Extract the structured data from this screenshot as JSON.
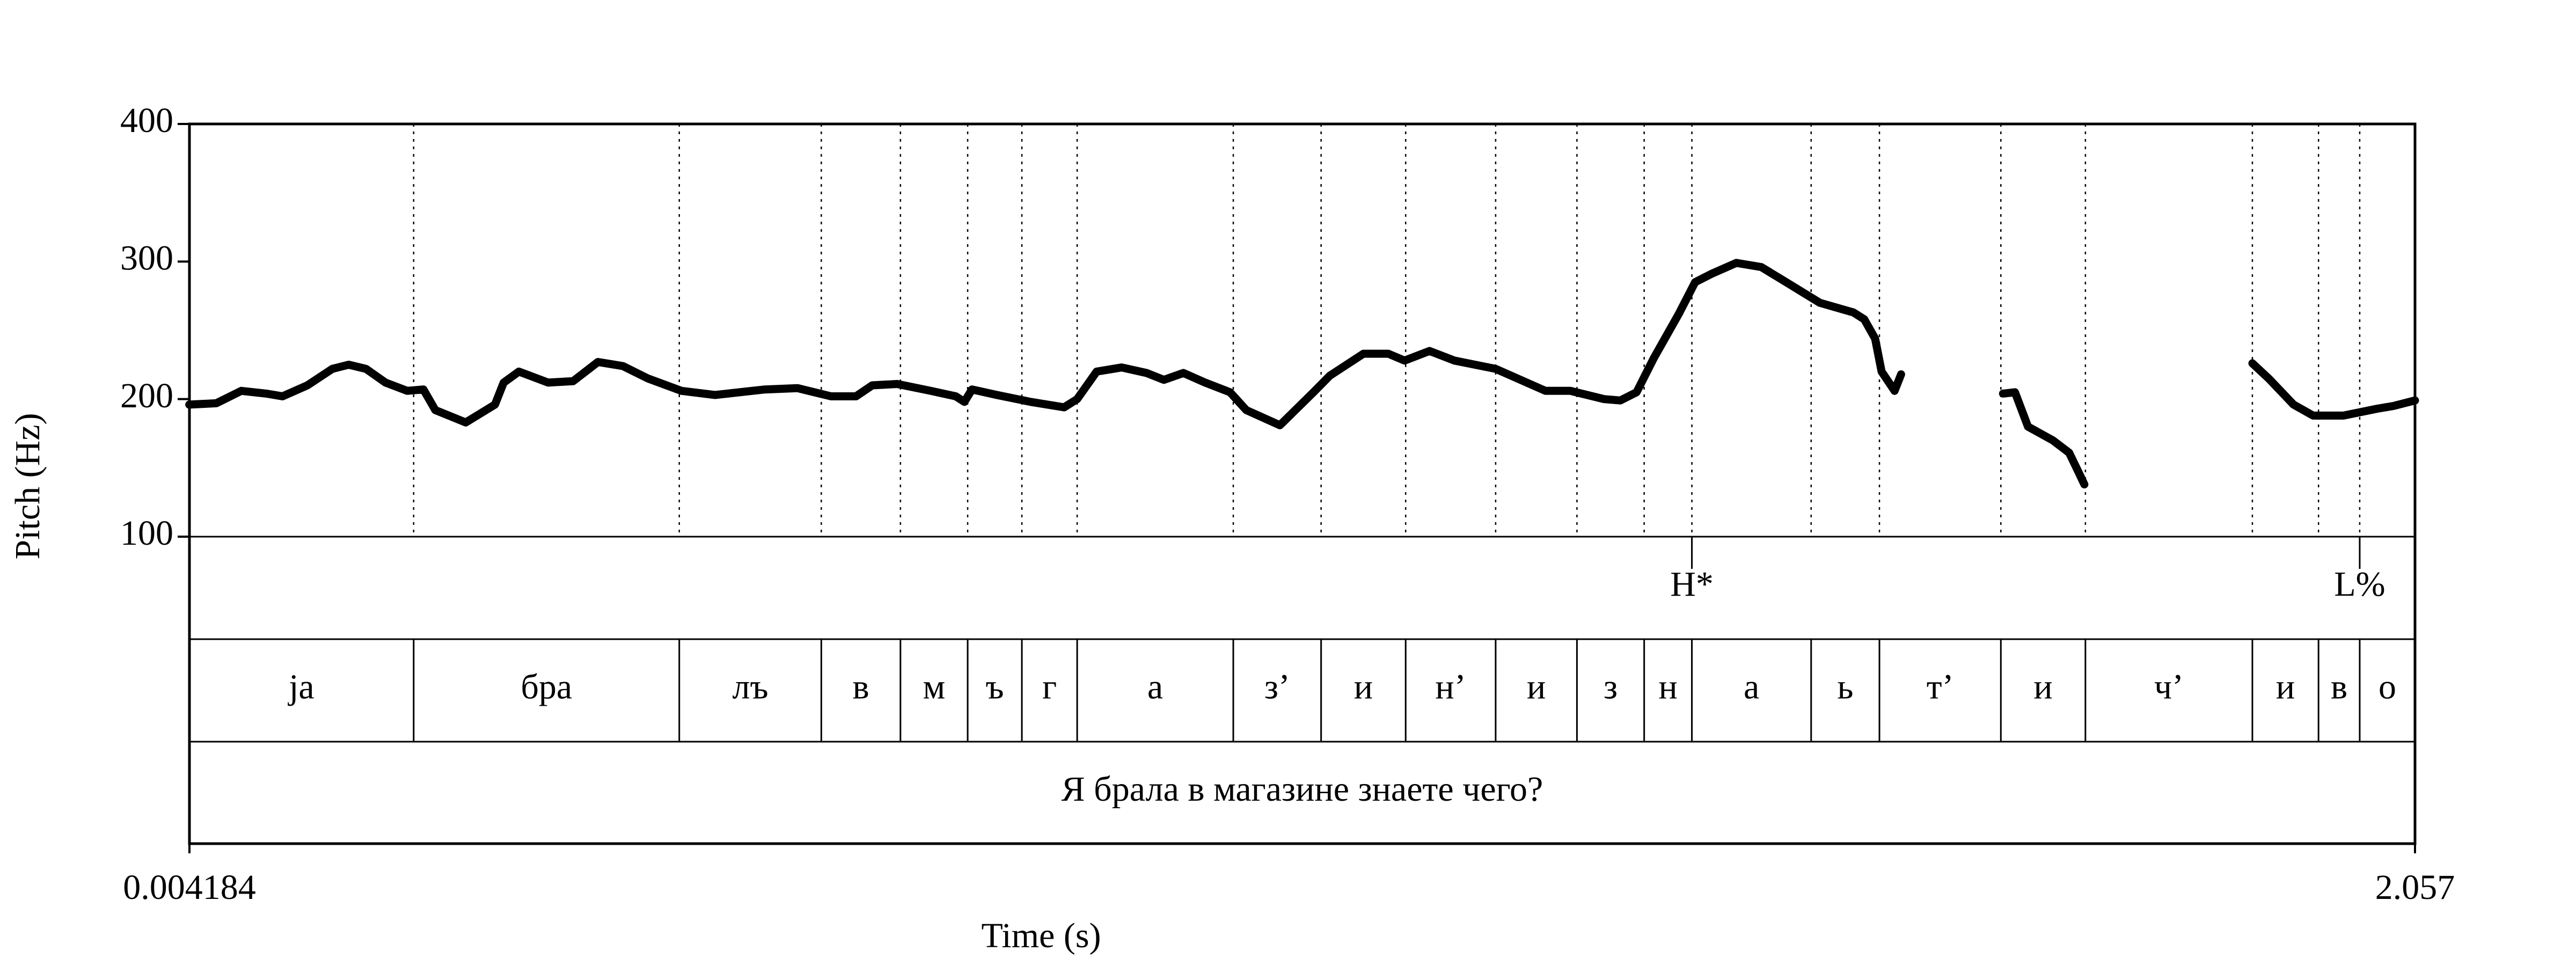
{
  "chart_data": {
    "type": "line",
    "xlabel": "Time (s)",
    "ylabel": "Pitch (Hz)",
    "xlim": [
      0.004184,
      2.057
    ],
    "xticks": [
      0.004184,
      2.057
    ],
    "ylim": [
      100,
      400
    ],
    "yticks": [
      100,
      200,
      300,
      400
    ],
    "x": [
      0.004,
      0.029,
      0.052,
      0.075,
      0.09,
      0.113,
      0.136,
      0.151,
      0.167,
      0.185,
      0.205,
      0.22,
      0.231,
      0.259,
      0.286,
      0.294,
      0.308,
      0.335,
      0.358,
      0.381,
      0.404,
      0.427,
      0.458,
      0.489,
      0.535,
      0.565,
      0.596,
      0.619,
      0.634,
      0.657,
      0.688,
      0.711,
      0.719,
      0.726,
      0.749,
      0.78,
      0.811,
      0.823,
      0.841,
      0.864,
      0.887,
      0.903,
      0.921,
      0.941,
      0.964,
      0.979,
      1.01,
      1.041,
      1.056,
      1.087,
      1.11,
      1.125,
      1.148,
      1.171,
      1.209,
      1.255,
      1.278,
      1.309,
      1.324,
      1.339,
      1.355,
      1.378,
      1.393,
      1.408,
      1.431,
      1.454,
      1.477,
      1.508,
      1.539,
      1.549,
      1.559,
      1.565,
      1.577,
      1.583,
      1.62,
      1.677,
      1.688,
      1.7,
      1.723,
      1.738,
      1.746,
      1.752,
      1.83,
      1.907,
      1.922,
      1.945,
      1.963,
      1.991,
      2.022,
      2.037,
      2.057
    ],
    "series": [
      {
        "color": "#000000",
        "values": [
          196,
          197,
          206,
          204,
          202,
          210,
          222,
          225,
          222,
          212,
          206,
          207,
          192,
          183,
          196,
          212,
          220,
          212,
          213,
          227,
          224,
          215,
          206,
          203,
          207,
          208,
          202,
          202,
          210,
          211,
          206,
          202,
          198,
          207,
          203,
          198,
          194,
          200,
          220,
          223,
          219,
          214,
          219,
          212,
          205,
          192,
          181,
          205,
          217,
          233,
          233,
          228,
          235,
          228,
          222,
          206,
          206,
          200,
          199,
          205,
          230,
          262,
          285,
          291,
          299,
          296,
          285,
          270,
          263,
          258,
          244,
          220,
          206,
          218,
          null,
          204,
          205,
          180,
          170,
          161,
          148,
          138,
          null,
          226,
          215,
          196,
          188,
          188,
          193,
          195,
          199
        ]
      }
    ],
    "tones": [
      {
        "time": 1.39,
        "label": "H*"
      },
      {
        "time": 2.006,
        "label": "L%"
      }
    ],
    "segment_boundaries": [
      0.211,
      0.456,
      0.587,
      0.66,
      0.722,
      0.772,
      0.823,
      0.967,
      1.048,
      1.126,
      1.209,
      1.284,
      1.346,
      1.39,
      1.5,
      1.563,
      1.675,
      1.753,
      1.907,
      1.968,
      2.006
    ],
    "segments": [
      "ja",
      "бра",
      "лъ",
      "в",
      "м",
      "ъ",
      "г",
      "а",
      "з’",
      "и",
      "н’",
      "и",
      "з",
      "н",
      "а",
      "ь",
      "т’",
      "и",
      "ч’",
      "и",
      "в",
      "о"
    ],
    "sentence": "Я брала в магазине знаете чего?"
  }
}
